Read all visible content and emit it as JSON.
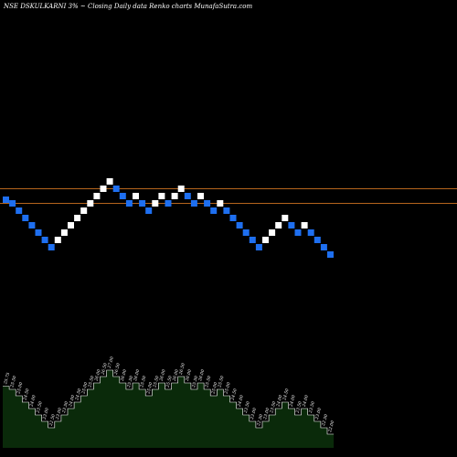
{
  "header": {
    "title": "NSE DSKULKARNI 3% ~  Closing Daily data  Renko  charts MunafaSutra.com"
  },
  "colors": {
    "background": "#000000",
    "up_brick": "#ffffff",
    "down_brick": "#1e6ff0",
    "level_line": "#b5651d",
    "volume_fill": "#0a2a0a",
    "volume_stroke": "#ffffff",
    "label_text": "#ffffff"
  },
  "chart_data": {
    "type": "renko",
    "brick_pct": 3,
    "levels": [
      26.5,
      25.5
    ],
    "bricks": [
      {
        "dir": "down",
        "value": 25.75
      },
      {
        "dir": "down",
        "value": 25.5
      },
      {
        "dir": "down",
        "value": 25.0
      },
      {
        "dir": "down",
        "value": 24.5
      },
      {
        "dir": "down",
        "value": 24.0
      },
      {
        "dir": "down",
        "value": 23.5
      },
      {
        "dir": "down",
        "value": 23.0
      },
      {
        "dir": "down",
        "value": 22.5
      },
      {
        "dir": "up",
        "value": 23.0
      },
      {
        "dir": "up",
        "value": 23.5
      },
      {
        "dir": "up",
        "value": 24.0
      },
      {
        "dir": "up",
        "value": 24.5
      },
      {
        "dir": "up",
        "value": 25.0
      },
      {
        "dir": "up",
        "value": 25.5
      },
      {
        "dir": "up",
        "value": 26.0
      },
      {
        "dir": "up",
        "value": 26.5
      },
      {
        "dir": "up",
        "value": 27.0
      },
      {
        "dir": "down",
        "value": 26.5
      },
      {
        "dir": "down",
        "value": 26.0
      },
      {
        "dir": "down",
        "value": 25.5
      },
      {
        "dir": "up",
        "value": 26.0
      },
      {
        "dir": "down",
        "value": 25.5
      },
      {
        "dir": "down",
        "value": 25.0
      },
      {
        "dir": "up",
        "value": 25.5
      },
      {
        "dir": "up",
        "value": 26.0
      },
      {
        "dir": "down",
        "value": 25.5
      },
      {
        "dir": "up",
        "value": 26.0
      },
      {
        "dir": "up",
        "value": 26.5
      },
      {
        "dir": "down",
        "value": 26.0
      },
      {
        "dir": "down",
        "value": 25.5
      },
      {
        "dir": "up",
        "value": 26.0
      },
      {
        "dir": "down",
        "value": 25.5
      },
      {
        "dir": "down",
        "value": 25.0
      },
      {
        "dir": "up",
        "value": 25.5
      },
      {
        "dir": "down",
        "value": 25.0
      },
      {
        "dir": "down",
        "value": 24.5
      },
      {
        "dir": "down",
        "value": 24.0
      },
      {
        "dir": "down",
        "value": 23.5
      },
      {
        "dir": "down",
        "value": 23.0
      },
      {
        "dir": "down",
        "value": 22.5
      },
      {
        "dir": "up",
        "value": 23.0
      },
      {
        "dir": "up",
        "value": 23.5
      },
      {
        "dir": "up",
        "value": 24.0
      },
      {
        "dir": "up",
        "value": 24.5
      },
      {
        "dir": "down",
        "value": 24.0
      },
      {
        "dir": "down",
        "value": 23.5
      },
      {
        "dir": "up",
        "value": 24.0
      },
      {
        "dir": "down",
        "value": 23.5
      },
      {
        "dir": "down",
        "value": 23.0
      },
      {
        "dir": "down",
        "value": 22.5
      },
      {
        "dir": "down",
        "value": 22.0
      }
    ],
    "volume_labels": [
      "25.75",
      "25.50",
      "25.00",
      "24.50",
      "24.00",
      "23.50",
      "23.00",
      "22.50",
      "23.00",
      "23.50",
      "24.00",
      "24.50",
      "25.00",
      "25.50",
      "26.00",
      "26.50",
      "27.00",
      "26.50",
      "26.00",
      "25.50",
      "26.00",
      "25.50",
      "25.00",
      "25.50",
      "26.00",
      "25.50",
      "26.00",
      "26.50",
      "26.00",
      "25.50",
      "26.00",
      "25.50",
      "25.00",
      "25.50",
      "25.00",
      "24.50",
      "24.00",
      "23.50",
      "23.00",
      "22.50",
      "23.00",
      "23.50",
      "24.00",
      "24.50",
      "24.00",
      "23.50",
      "24.00",
      "23.50",
      "23.00",
      "22.50",
      "22.00"
    ]
  }
}
